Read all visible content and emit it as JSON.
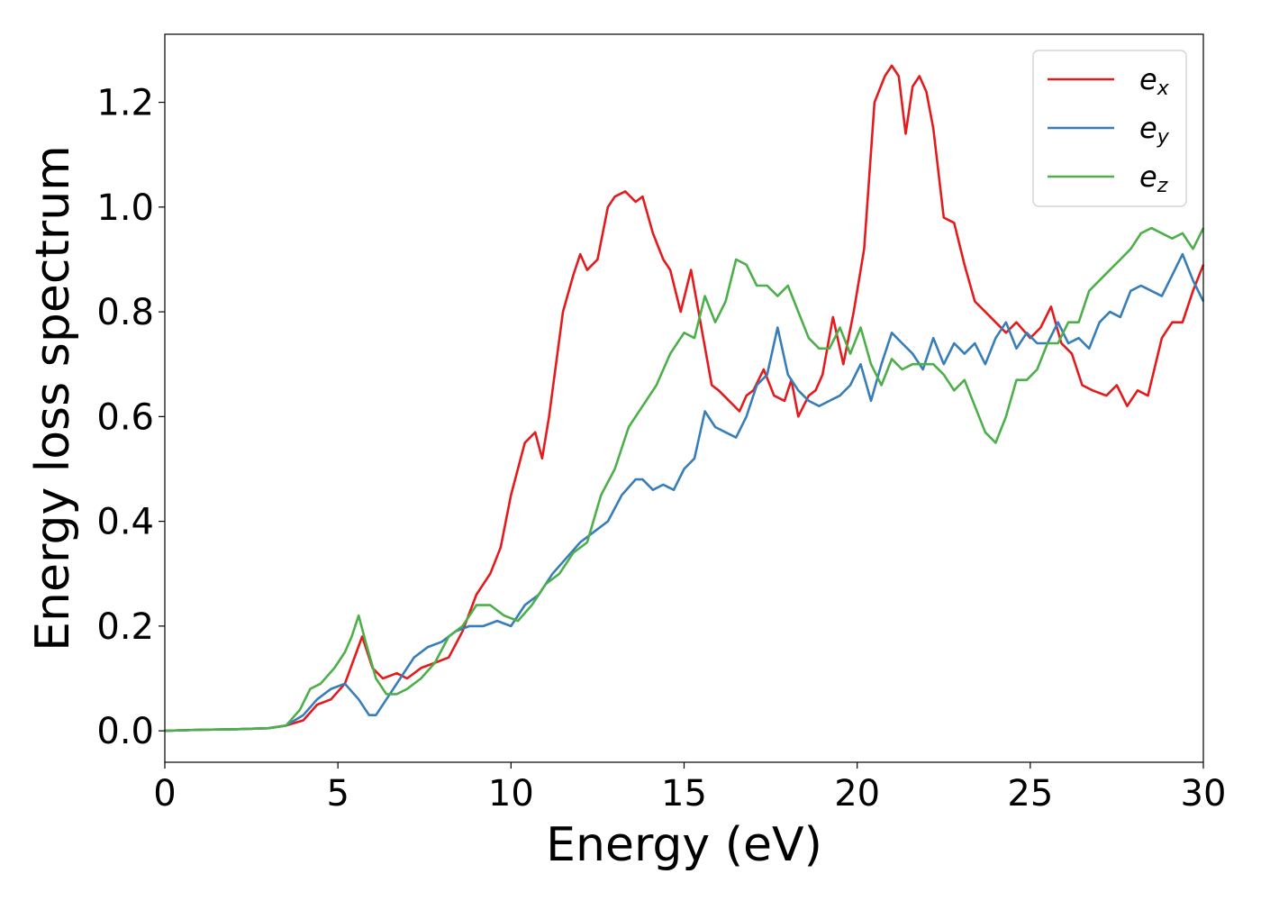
{
  "chart_data": {
    "type": "line",
    "title": "",
    "xlabel": "Energy (eV)",
    "ylabel": "Energy loss spectrum",
    "xlim": [
      0,
      30
    ],
    "ylim": [
      -0.06,
      1.33
    ],
    "xticks": [
      "0",
      "5",
      "10",
      "15",
      "20",
      "25",
      "30"
    ],
    "yticks": [
      "0.0",
      "0.2",
      "0.4",
      "0.6",
      "0.8",
      "1.0",
      "1.2"
    ],
    "grid": false,
    "legend_position": "top-right",
    "series": [
      {
        "name": "e_x",
        "label_base": "e",
        "label_sub": "x",
        "color": "#e41a1c",
        "x": [
          0,
          1,
          2,
          3,
          3.5,
          4.0,
          4.4,
          4.8,
          5.2,
          5.7,
          6.0,
          6.3,
          6.7,
          7.0,
          7.4,
          7.8,
          8.2,
          8.6,
          9.0,
          9.4,
          9.7,
          10.0,
          10.4,
          10.7,
          10.9,
          11.1,
          11.5,
          11.8,
          12.0,
          12.2,
          12.5,
          12.8,
          13.0,
          13.3,
          13.6,
          13.8,
          14.1,
          14.4,
          14.6,
          14.9,
          15.2,
          15.5,
          15.8,
          16.0,
          16.3,
          16.6,
          16.8,
          17.0,
          17.3,
          17.6,
          17.9,
          18.1,
          18.3,
          18.6,
          18.8,
          19.0,
          19.3,
          19.6,
          19.9,
          20.2,
          20.5,
          20.8,
          21.0,
          21.2,
          21.4,
          21.6,
          21.8,
          22.0,
          22.2,
          22.5,
          22.8,
          23.1,
          23.4,
          23.7,
          24.0,
          24.3,
          24.6,
          25.0,
          25.3,
          25.6,
          25.9,
          26.2,
          26.5,
          26.8,
          27.2,
          27.5,
          27.8,
          28.1,
          28.4,
          28.8,
          29.1,
          29.4,
          29.7,
          30.0
        ],
        "values": [
          0,
          0.002,
          0.003,
          0.005,
          0.01,
          0.02,
          0.05,
          0.06,
          0.09,
          0.18,
          0.12,
          0.1,
          0.11,
          0.1,
          0.12,
          0.13,
          0.14,
          0.19,
          0.26,
          0.3,
          0.35,
          0.45,
          0.55,
          0.57,
          0.52,
          0.6,
          0.8,
          0.87,
          0.91,
          0.88,
          0.9,
          1.0,
          1.02,
          1.03,
          1.01,
          1.02,
          0.95,
          0.9,
          0.88,
          0.8,
          0.88,
          0.77,
          0.66,
          0.65,
          0.63,
          0.61,
          0.64,
          0.65,
          0.69,
          0.64,
          0.63,
          0.67,
          0.6,
          0.64,
          0.65,
          0.68,
          0.79,
          0.7,
          0.8,
          0.92,
          1.2,
          1.25,
          1.27,
          1.25,
          1.14,
          1.23,
          1.25,
          1.22,
          1.15,
          0.98,
          0.97,
          0.89,
          0.82,
          0.8,
          0.78,
          0.76,
          0.78,
          0.75,
          0.77,
          0.81,
          0.74,
          0.72,
          0.66,
          0.65,
          0.64,
          0.66,
          0.62,
          0.65,
          0.64,
          0.75,
          0.78,
          0.78,
          0.84,
          0.89
        ]
      },
      {
        "name": "e_y",
        "label_base": "e",
        "label_sub": "y",
        "color": "#377eb8",
        "x": [
          0,
          1,
          2,
          3,
          3.5,
          4.0,
          4.4,
          4.8,
          5.2,
          5.6,
          5.9,
          6.1,
          6.4,
          6.8,
          7.2,
          7.6,
          8.0,
          8.4,
          8.8,
          9.2,
          9.6,
          10.0,
          10.4,
          10.8,
          11.2,
          11.6,
          12.0,
          12.4,
          12.8,
          13.2,
          13.6,
          13.8,
          14.1,
          14.4,
          14.7,
          15.0,
          15.3,
          15.6,
          15.9,
          16.2,
          16.5,
          16.8,
          17.1,
          17.4,
          17.7,
          18.0,
          18.3,
          18.6,
          18.9,
          19.2,
          19.5,
          19.8,
          20.1,
          20.4,
          20.7,
          21.0,
          21.3,
          21.6,
          21.9,
          22.2,
          22.5,
          22.8,
          23.1,
          23.4,
          23.7,
          24.0,
          24.3,
          24.6,
          24.9,
          25.2,
          25.5,
          25.8,
          26.1,
          26.4,
          26.7,
          27.0,
          27.3,
          27.6,
          27.9,
          28.2,
          28.5,
          28.8,
          29.1,
          29.4,
          29.7,
          30.0
        ],
        "values": [
          0,
          0.002,
          0.003,
          0.005,
          0.01,
          0.03,
          0.06,
          0.08,
          0.09,
          0.06,
          0.03,
          0.03,
          0.06,
          0.1,
          0.14,
          0.16,
          0.17,
          0.19,
          0.2,
          0.2,
          0.21,
          0.2,
          0.24,
          0.26,
          0.3,
          0.33,
          0.36,
          0.38,
          0.4,
          0.45,
          0.48,
          0.48,
          0.46,
          0.47,
          0.46,
          0.5,
          0.52,
          0.61,
          0.58,
          0.57,
          0.56,
          0.6,
          0.66,
          0.68,
          0.77,
          0.68,
          0.65,
          0.63,
          0.62,
          0.63,
          0.64,
          0.66,
          0.7,
          0.63,
          0.7,
          0.76,
          0.74,
          0.72,
          0.69,
          0.75,
          0.7,
          0.74,
          0.72,
          0.74,
          0.7,
          0.75,
          0.78,
          0.73,
          0.76,
          0.74,
          0.74,
          0.78,
          0.74,
          0.75,
          0.73,
          0.78,
          0.8,
          0.79,
          0.84,
          0.85,
          0.84,
          0.83,
          0.87,
          0.91,
          0.86,
          0.82
        ]
      },
      {
        "name": "e_z",
        "label_base": "e",
        "label_sub": "z",
        "color": "#4daf4a",
        "x": [
          0,
          1,
          2,
          3,
          3.5,
          3.9,
          4.2,
          4.5,
          4.9,
          5.2,
          5.4,
          5.6,
          5.8,
          6.1,
          6.4,
          6.7,
          7.0,
          7.4,
          7.8,
          8.2,
          8.6,
          9.0,
          9.4,
          9.8,
          10.2,
          10.6,
          11.0,
          11.4,
          11.8,
          12.2,
          12.6,
          13.0,
          13.4,
          13.8,
          14.2,
          14.6,
          15.0,
          15.3,
          15.6,
          15.9,
          16.2,
          16.5,
          16.8,
          17.1,
          17.4,
          17.7,
          18.0,
          18.3,
          18.6,
          18.9,
          19.2,
          19.5,
          19.8,
          20.1,
          20.4,
          20.7,
          21.0,
          21.3,
          21.6,
          21.9,
          22.2,
          22.5,
          22.8,
          23.1,
          23.4,
          23.7,
          24.0,
          24.3,
          24.6,
          24.9,
          25.2,
          25.5,
          25.8,
          26.1,
          26.4,
          26.7,
          27.0,
          27.3,
          27.6,
          27.9,
          28.2,
          28.5,
          28.8,
          29.1,
          29.4,
          29.7,
          30.0
        ],
        "values": [
          0,
          0.002,
          0.003,
          0.005,
          0.01,
          0.04,
          0.08,
          0.09,
          0.12,
          0.15,
          0.18,
          0.22,
          0.17,
          0.1,
          0.07,
          0.07,
          0.08,
          0.1,
          0.13,
          0.18,
          0.2,
          0.24,
          0.24,
          0.22,
          0.21,
          0.24,
          0.28,
          0.3,
          0.34,
          0.36,
          0.45,
          0.5,
          0.58,
          0.62,
          0.66,
          0.72,
          0.76,
          0.75,
          0.83,
          0.78,
          0.82,
          0.9,
          0.89,
          0.85,
          0.85,
          0.83,
          0.85,
          0.8,
          0.75,
          0.73,
          0.73,
          0.77,
          0.72,
          0.77,
          0.7,
          0.66,
          0.71,
          0.69,
          0.7,
          0.7,
          0.7,
          0.68,
          0.65,
          0.67,
          0.62,
          0.57,
          0.55,
          0.6,
          0.67,
          0.67,
          0.69,
          0.74,
          0.74,
          0.78,
          0.78,
          0.84,
          0.86,
          0.88,
          0.9,
          0.92,
          0.95,
          0.96,
          0.95,
          0.94,
          0.95,
          0.92,
          0.96
        ]
      }
    ]
  }
}
